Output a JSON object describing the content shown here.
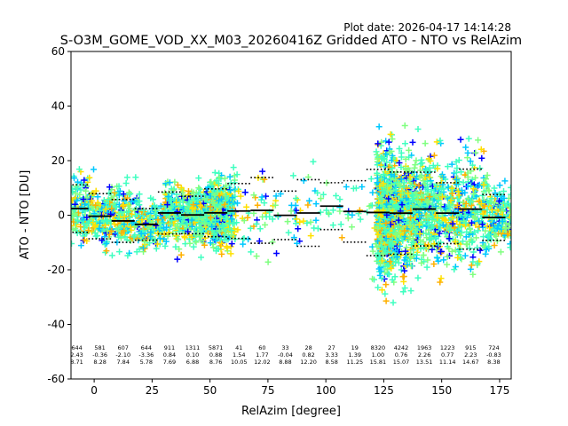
{
  "chart_data": {
    "type": "scatter",
    "plot_date": "Plot date: 2026-04-17 14:14:28",
    "title": "S-O3M_GOME_VOD_XX_M03_20260416Z Gridded ATO - NTO vs RelAzim",
    "xlabel": "RelAzim [degree]",
    "ylabel": "ATO - NTO [DU]",
    "xlim": [
      -10,
      180
    ],
    "ylim": [
      -60,
      60
    ],
    "xticks": [
      0,
      25,
      50,
      75,
      100,
      125,
      150,
      175
    ],
    "yticks": [
      -60,
      -40,
      -20,
      0,
      20,
      40,
      60
    ],
    "point_colors": [
      "#0000ff",
      "#00c8ff",
      "#40ffc0",
      "#80ff80",
      "#ffe000",
      "#ffb000"
    ],
    "bin_edges": [
      -10,
      0,
      10,
      20,
      30,
      40,
      50,
      58,
      61,
      70,
      80,
      90,
      100,
      110,
      120,
      122,
      130,
      140,
      150,
      160,
      170,
      180
    ],
    "bins": [
      {
        "x": -7.5,
        "n": "644",
        "mean": "2.43",
        "std": "8.71"
      },
      {
        "x": 2.5,
        "n": "581",
        "mean": "-0.36",
        "std": "8.28"
      },
      {
        "x": 12.5,
        "n": "607",
        "mean": "-2.10",
        "std": "7.84"
      },
      {
        "x": 22.5,
        "n": "644",
        "mean": "-3.36",
        "std": "5.78"
      },
      {
        "x": 32.5,
        "n": "911",
        "mean": "0.84",
        "std": "7.69"
      },
      {
        "x": 42.5,
        "n": "1311",
        "mean": "0.10",
        "std": "6.88"
      },
      {
        "x": 52.5,
        "n": "5871",
        "mean": "0.88",
        "std": "8.76"
      },
      {
        "x": 62.5,
        "n": "41",
        "mean": "1.54",
        "std": "10.05"
      },
      {
        "x": 72.5,
        "n": "60",
        "mean": "1.77",
        "std": "12.02"
      },
      {
        "x": 82.5,
        "n": "33",
        "mean": "-0.04",
        "std": "8.88"
      },
      {
        "x": 92.5,
        "n": "28",
        "mean": "0.82",
        "std": "12.20"
      },
      {
        "x": 102.5,
        "n": "27",
        "mean": "3.33",
        "std": "8.58"
      },
      {
        "x": 112.5,
        "n": "19",
        "mean": "1.39",
        "std": "11.25"
      },
      {
        "x": 122.5,
        "n": "8320",
        "mean": "1.00",
        "std": "15.81"
      },
      {
        "x": 132.5,
        "n": "4242",
        "mean": "0.76",
        "std": "15.07"
      },
      {
        "x": 142.5,
        "n": "1963",
        "mean": "2.26",
        "std": "13.51"
      },
      {
        "x": 152.5,
        "n": "1223",
        "mean": "0.77",
        "std": "11.14"
      },
      {
        "x": 162.5,
        "n": "915",
        "mean": "2.23",
        "std": "14.67"
      },
      {
        "x": 172.5,
        "n": "724",
        "mean": "-0.83",
        "std": "8.38"
      }
    ]
  }
}
